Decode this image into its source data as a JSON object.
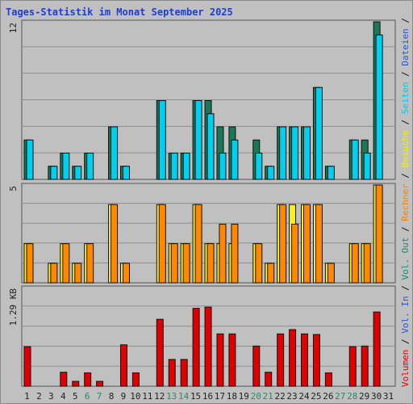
{
  "title": "Tages-Statistik im Monat September 2025",
  "legend": {
    "parts": [
      {
        "text": "Volumen",
        "color": "#e30000"
      },
      {
        "text": " / ",
        "color": "#111111"
      },
      {
        "text": "Vol. In",
        "color": "#2a55d0"
      },
      {
        "text": " / ",
        "color": "#111111"
      },
      {
        "text": "Vol. Out",
        "color": "#1b8a6b"
      },
      {
        "text": " / ",
        "color": "#111111"
      },
      {
        "text": "Rechner",
        "color": "#ff8000"
      },
      {
        "text": " / ",
        "color": "#111111"
      },
      {
        "text": "Besuche",
        "color": "#f0f000"
      },
      {
        "text": " / ",
        "color": "#111111"
      },
      {
        "text": "Seiten",
        "color": "#00c8f0"
      },
      {
        "text": " / ",
        "color": "#111111"
      },
      {
        "text": "Dateien",
        "color": "#2a55d0"
      },
      {
        "text": " / ",
        "color": "#111111"
      },
      {
        "text": "Anfragen",
        "color": "#1b8a6b"
      }
    ]
  },
  "chart_data": {
    "type": "bar",
    "categories": [
      "1",
      "2",
      "3",
      "4",
      "5",
      "6",
      "7",
      "8",
      "9",
      "10",
      "11",
      "12",
      "13",
      "14",
      "15",
      "16",
      "17",
      "18",
      "19",
      "20",
      "21",
      "22",
      "23",
      "24",
      "25",
      "26",
      "27",
      "28",
      "29",
      "30",
      "31"
    ],
    "weekend_days": [
      "6",
      "7",
      "13",
      "14",
      "20",
      "21",
      "27",
      "28"
    ],
    "colors": {
      "anfragen": "#187858",
      "seiten": "#00d0f0",
      "besuche": "#f8f020",
      "rechner": "#ff8800",
      "volumen": "#e00000",
      "weekday_label": "#222222",
      "weekend_label": "#2a8a6a"
    },
    "panels": [
      {
        "name": "requests",
        "tick_label": "12",
        "ylim": [
          0,
          12
        ],
        "series": [
          {
            "name": "Anfragen",
            "values": [
              3,
              0,
              1,
              2,
              1,
              2,
              0,
              4,
              1,
              0,
              0,
              6,
              2,
              2,
              6,
              6,
              4,
              4,
              0,
              3,
              1,
              4,
              4,
              4,
              7,
              1,
              0,
              3,
              3,
              12,
              0
            ]
          },
          {
            "name": "Seiten",
            "values": [
              3,
              0,
              1,
              2,
              1,
              2,
              0,
              4,
              1,
              0,
              0,
              6,
              2,
              2,
              6,
              5,
              2,
              3,
              0,
              2,
              1,
              4,
              4,
              4,
              7,
              1,
              0,
              3,
              2,
              11,
              0
            ]
          }
        ]
      },
      {
        "name": "visits",
        "tick_label": "5",
        "ylim": [
          0,
          5
        ],
        "series": [
          {
            "name": "Besuche",
            "values": [
              2,
              0,
              1,
              2,
              1,
              2,
              0,
              4,
              1,
              0,
              0,
              4,
              2,
              2,
              4,
              2,
              2,
              2,
              0,
              2,
              1,
              4,
              4,
              4,
              4,
              1,
              0,
              2,
              2,
              5,
              0
            ]
          },
          {
            "name": "Rechner",
            "values": [
              2,
              0,
              1,
              2,
              1,
              2,
              0,
              4,
              1,
              0,
              0,
              4,
              2,
              2,
              4,
              2,
              3,
              3,
              0,
              2,
              1,
              4,
              3,
              4,
              4,
              1,
              0,
              2,
              2,
              5,
              0
            ]
          }
        ]
      },
      {
        "name": "volume",
        "tick_label": "1.29 KB",
        "ylim": [
          0,
          1.62
        ],
        "series": [
          {
            "name": "Volumen",
            "values": [
              0.65,
              0,
              0,
              0.23,
              0.08,
              0.22,
              0.08,
              0,
              0.68,
              0.22,
              0,
              1.1,
              0.44,
              0.44,
              1.28,
              1.3,
              0.86,
              0.86,
              0,
              0.66,
              0.23,
              0.86,
              0.93,
              0.86,
              0.85,
              0.22,
              0,
              0.65,
              0.66,
              1.22,
              0
            ]
          }
        ]
      }
    ]
  }
}
